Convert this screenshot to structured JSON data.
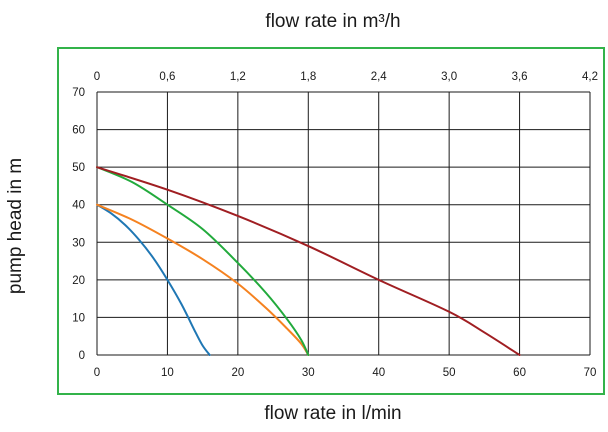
{
  "chart_data": {
    "type": "line",
    "top_axis_label": "flow rate in m³/h",
    "xlabel": "flow rate in l/min",
    "ylabel": "pump head in m",
    "xlim": [
      0,
      70
    ],
    "ylim": [
      0,
      70
    ],
    "x_ticks": [
      "0",
      "10",
      "20",
      "30",
      "40",
      "50",
      "60",
      "70"
    ],
    "y_ticks": [
      "0",
      "10",
      "20",
      "30",
      "40",
      "50",
      "60",
      "70"
    ],
    "top_ticks": [
      "0",
      "0,6",
      "1,2",
      "1,8",
      "2,4",
      "3,0",
      "3,6",
      "4,2"
    ],
    "grid": true,
    "legend": "none",
    "frame_color": "#33b34a",
    "series": [
      {
        "color": "#1f77b4",
        "x": [
          0,
          2,
          4,
          6,
          8,
          10,
          12,
          14,
          15,
          16
        ],
        "y": [
          40,
          37.7,
          34.6,
          30.6,
          25.8,
          20.0,
          13.5,
          6.0,
          2.5,
          0
        ]
      },
      {
        "color": "#f58220",
        "x": [
          0,
          5,
          10,
          15,
          20,
          24,
          27,
          29,
          30
        ],
        "y": [
          40,
          36.0,
          31.0,
          25.5,
          19.0,
          12.5,
          7.0,
          3.0,
          0
        ]
      },
      {
        "color": "#22aa3c",
        "x": [
          0,
          5,
          10,
          15,
          20,
          24,
          27,
          29,
          30
        ],
        "y": [
          50,
          46.0,
          40.0,
          33.5,
          24.5,
          16.5,
          9.5,
          4.0,
          0
        ]
      },
      {
        "color": "#a01e22",
        "x": [
          0,
          10,
          20,
          30,
          40,
          50,
          55,
          60
        ],
        "y": [
          50,
          44.0,
          37.0,
          29.0,
          20.0,
          11.5,
          6.0,
          0
        ]
      }
    ]
  }
}
